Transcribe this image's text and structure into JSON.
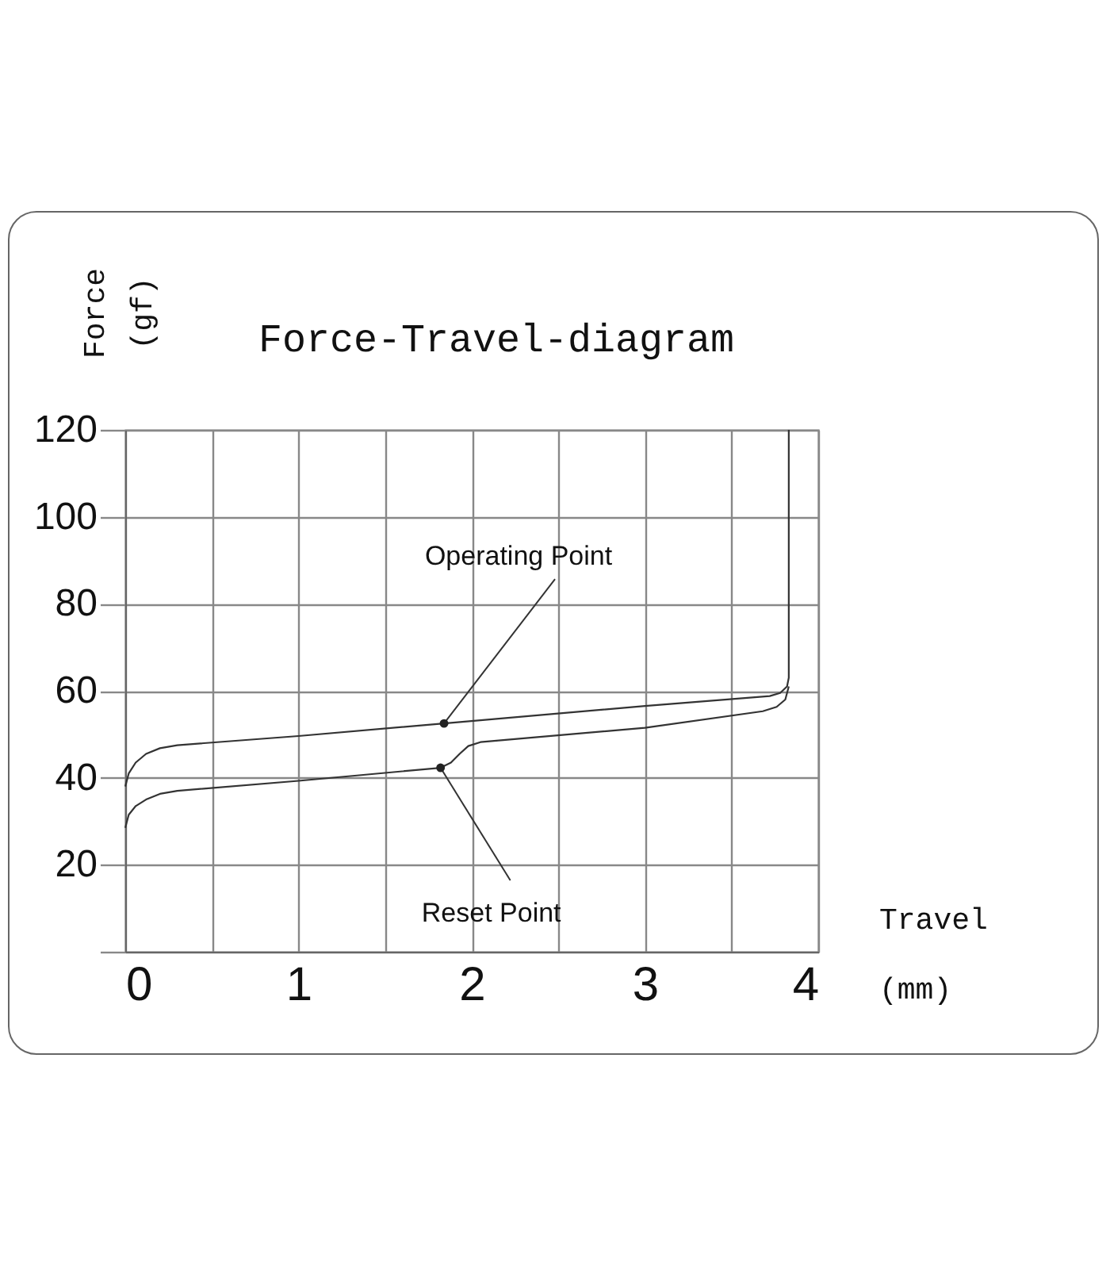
{
  "chart_data": {
    "type": "line",
    "title": "Force-Travel-diagram",
    "xlabel": "Travel\n(mm)",
    "ylabel": "Force\n(gf)",
    "xlim": [
      0,
      4
    ],
    "xticks": [
      0,
      {
        "value": 0.5,
        "label": null
      },
      1,
      {
        "value": 1.5,
        "label": null
      },
      2,
      {
        "value": 2.5,
        "label": null
      },
      3,
      {
        "value": 3.5,
        "label": null
      },
      4
    ],
    "ylim": [
      0,
      120
    ],
    "yticks": [
      {
        "value": 0,
        "label": null
      },
      20,
      40,
      60,
      80,
      100,
      120
    ],
    "grid": true,
    "marker": "none",
    "line_style": "solid",
    "series": [
      {
        "color": "#333333",
        "x": [
          0,
          0.02,
          0.06,
          0.12,
          0.2,
          0.3,
          1.0,
          1.84,
          3.0,
          3.72,
          3.78,
          3.82,
          3.83,
          3.83
        ],
        "values": [
          38,
          41,
          43.5,
          45.5,
          46.8,
          47.5,
          49.6,
          52.5,
          56.5,
          58.8,
          59.5,
          61,
          63,
          120
        ]
      },
      {
        "color": "#333333",
        "x": [
          0,
          0.02,
          0.06,
          0.12,
          0.2,
          0.3,
          1.0,
          1.82,
          1.88,
          1.93,
          1.98,
          2.05,
          3.0,
          3.68,
          3.76,
          3.81,
          3.83
        ],
        "values": [
          28.5,
          31.5,
          33.5,
          35,
          36.3,
          37,
          39.3,
          42.3,
          43.5,
          45.5,
          47.3,
          48.2,
          51.5,
          55.3,
          56.3,
          58,
          61
        ]
      }
    ],
    "annotations": [
      {
        "text": "Operating Point",
        "x": 1.84,
        "y": 52.5
      },
      {
        "text": "Reset Point",
        "x": 1.82,
        "y": 42.3
      }
    ]
  }
}
